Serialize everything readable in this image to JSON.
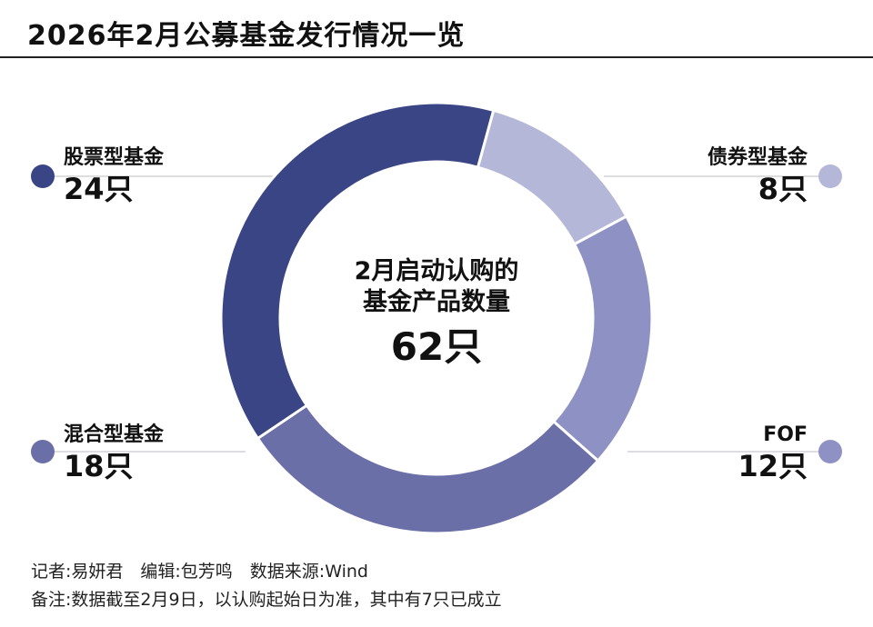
{
  "title": "2026年2月公募基金发行情况一览",
  "center": {
    "line1": "2月启动认购的",
    "line2": "基金产品数量",
    "total": "62只"
  },
  "chart_data": {
    "type": "pie",
    "unit": "只",
    "total": 62,
    "series": [
      {
        "name": "股票型基金",
        "value": 24,
        "label": "24只",
        "color": "#3a4585"
      },
      {
        "name": "债券型基金",
        "value": 8,
        "label": "8只",
        "color": "#b5b7d8"
      },
      {
        "name": "FOF",
        "value": 12,
        "label": "12只",
        "color": "#8e91c4"
      },
      {
        "name": "混合型基金",
        "value": 18,
        "label": "18只",
        "color": "#6b6fa8"
      }
    ]
  },
  "footer": {
    "credits": "记者:易妍君　编辑:包芳鸣　数据来源:Wind",
    "note": "备注:数据截至2月9日，以认购起始日为准，其中有7只已成立"
  }
}
